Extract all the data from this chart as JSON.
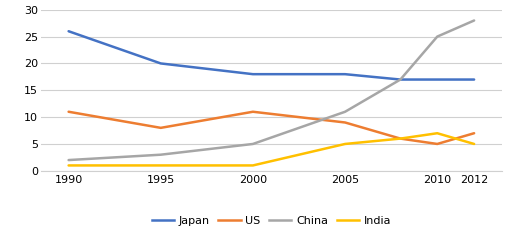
{
  "years": [
    1990,
    1995,
    2000,
    2005,
    2008,
    2010,
    2012
  ],
  "japan": [
    26,
    20,
    18,
    18,
    17,
    17,
    17
  ],
  "us": [
    11,
    8,
    11,
    9,
    6,
    5,
    7
  ],
  "china": [
    2,
    3,
    5,
    11,
    17,
    25,
    28
  ],
  "india": [
    1,
    1,
    1,
    5,
    6,
    7,
    5
  ],
  "colors": {
    "japan": "#4472C4",
    "us": "#ED7D31",
    "china": "#A6A6A6",
    "india": "#FFC000"
  },
  "legend_labels": [
    "Japan",
    "US",
    "China",
    "India"
  ],
  "ylim": [
    0,
    30
  ],
  "yticks": [
    0,
    5,
    10,
    15,
    20,
    25,
    30
  ],
  "xticks": [
    1990,
    1995,
    2000,
    2005,
    2010,
    2012
  ],
  "linewidth": 1.8,
  "grid_color": "#D0D0D0",
  "background_color": "#FFFFFF",
  "tick_fontsize": 8,
  "legend_fontsize": 8
}
